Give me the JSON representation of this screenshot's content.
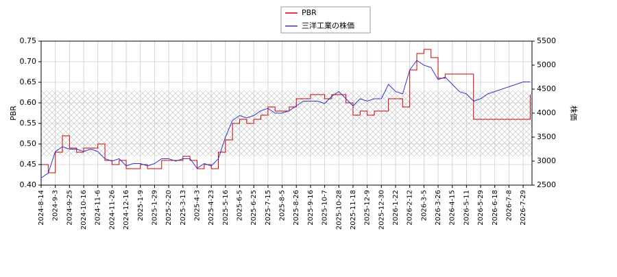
{
  "chart_data": {
    "type": "line",
    "ylabel": "PBR",
    "y2label": "株価",
    "categories": [
      "2024-8-14",
      null,
      "2024-9-3",
      null,
      "2024-9-25",
      null,
      "2024-10-16",
      null,
      "2024-11-6",
      null,
      "2024-11-26",
      null,
      "2024-12-16",
      null,
      "2025-1-9",
      null,
      "2025-1-29",
      null,
      "2025-2-20",
      null,
      "2025-3-13",
      null,
      "2025-4-3",
      null,
      "2025-4-23",
      null,
      "2025-5-16",
      null,
      "2025-6-5",
      null,
      "2025-6-25",
      null,
      "2025-7-15",
      null,
      "2025-8-5",
      null,
      "2025-8-26",
      null,
      "2025-9-16",
      null,
      "2025-10-7",
      null,
      "2025-10-28",
      null,
      "2025-11-18",
      null,
      "2025-12-9",
      null,
      "2025-12-30",
      null,
      "2026-1-22",
      null,
      "2026-2-12",
      null,
      "2026-3-5",
      null,
      "2026-3-26",
      null,
      "2026-4-15",
      null,
      "2026-5-11",
      null,
      "2026-5-29",
      null,
      "2026-6-18",
      null,
      "2026-7-8",
      null,
      "2026-7-29",
      null
    ],
    "series": [
      {
        "name": "PBR",
        "color": "#cc0000",
        "step": true,
        "axis": "y",
        "values": [
          0.45,
          0.43,
          0.48,
          0.52,
          0.49,
          0.48,
          0.49,
          0.49,
          0.5,
          0.46,
          0.45,
          0.46,
          0.44,
          0.44,
          0.45,
          0.44,
          0.44,
          0.46,
          0.46,
          0.46,
          0.47,
          0.46,
          0.44,
          0.45,
          0.44,
          0.48,
          0.51,
          0.55,
          0.56,
          0.55,
          0.56,
          0.57,
          0.59,
          0.58,
          0.58,
          0.59,
          0.61,
          0.61,
          0.62,
          0.62,
          0.61,
          0.62,
          0.62,
          0.6,
          0.57,
          0.58,
          0.57,
          0.58,
          0.58,
          0.61,
          0.61,
          0.59,
          0.68,
          0.72,
          0.73,
          0.71,
          0.66,
          0.67,
          0.67,
          0.67,
          0.67,
          0.56,
          0.56,
          0.56,
          0.56,
          0.56,
          0.56,
          0.56,
          0.56,
          0.62
        ]
      },
      {
        "name": "三洋工業の株価",
        "color": "#3333cc",
        "step": false,
        "axis": "y2",
        "values": [
          2650,
          2750,
          3200,
          3300,
          3250,
          3250,
          3200,
          3250,
          3200,
          3050,
          3000,
          3050,
          2900,
          2950,
          2950,
          2900,
          2950,
          3050,
          3050,
          3000,
          3050,
          3050,
          2850,
          2950,
          2900,
          3050,
          3500,
          3850,
          3950,
          3900,
          3950,
          4050,
          4100,
          4000,
          4000,
          4050,
          4150,
          4250,
          4250,
          4250,
          4200,
          4350,
          4450,
          4300,
          4150,
          4300,
          4250,
          4300,
          4300,
          4600,
          4450,
          4400,
          4900,
          5100,
          5000,
          4950,
          4700,
          4750,
          4600,
          4450,
          4400,
          4250,
          4300,
          4400,
          4450,
          4500,
          4550,
          4600,
          4650,
          4650
        ]
      }
    ],
    "shaded_range": [
      0.47,
      0.63
    ],
    "ylim": [
      0.4,
      0.75
    ],
    "yticks": [
      {
        "value": 0.4,
        "label": "0.40"
      },
      {
        "value": 0.45,
        "label": "0.45"
      },
      {
        "value": 0.5,
        "label": "0.50"
      },
      {
        "value": 0.55,
        "label": "0.55"
      },
      {
        "value": 0.6,
        "label": "0.60"
      },
      {
        "value": 0.65,
        "label": "0.65"
      },
      {
        "value": 0.7,
        "label": "0.70"
      },
      {
        "value": 0.75,
        "label": "0.75"
      }
    ],
    "y2lim": [
      2500,
      5500
    ],
    "y2ticks": [
      2500,
      3000,
      3500,
      4000,
      4500,
      5000,
      5500
    ],
    "grid": true,
    "legend": "top"
  }
}
